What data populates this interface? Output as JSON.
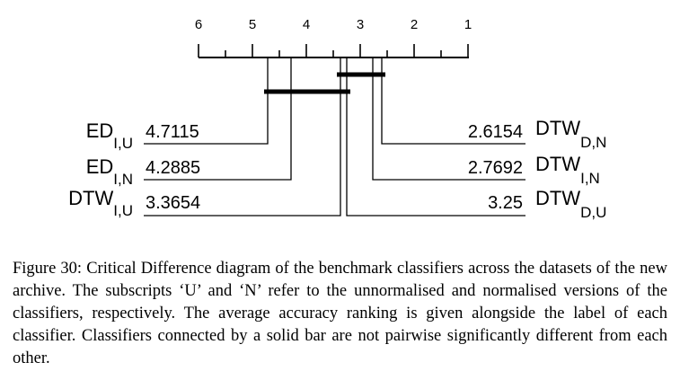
{
  "axis": {
    "ticks": [
      "6",
      "5",
      "4",
      "3",
      "2",
      "1"
    ]
  },
  "classifiers": {
    "left": [
      {
        "name": "ED",
        "sub": "I,U",
        "rank": "4.7115"
      },
      {
        "name": "ED",
        "sub": "I,N",
        "rank": "4.2885"
      },
      {
        "name": "DTW",
        "sub": "I,U",
        "rank": "3.3654"
      }
    ],
    "right": [
      {
        "name": "DTW",
        "sub": "D,N",
        "rank": "2.6154"
      },
      {
        "name": "DTW",
        "sub": "I,N",
        "rank": "2.7692"
      },
      {
        "name": "DTW",
        "sub": "D,U",
        "rank": "3.25"
      }
    ]
  },
  "caption": {
    "text": "Figure 30: Critical Difference diagram of the benchmark classifiers across the datasets of the new archive. The subscripts ‘U’ and ‘N’ refer to the un­normalised and normalised versions of the classifiers, respectively. The aver­age accuracy ranking is given alongside the label of each classifier. Classifiers connected by a solid bar are not pairwise significantly different from each other."
  }
}
